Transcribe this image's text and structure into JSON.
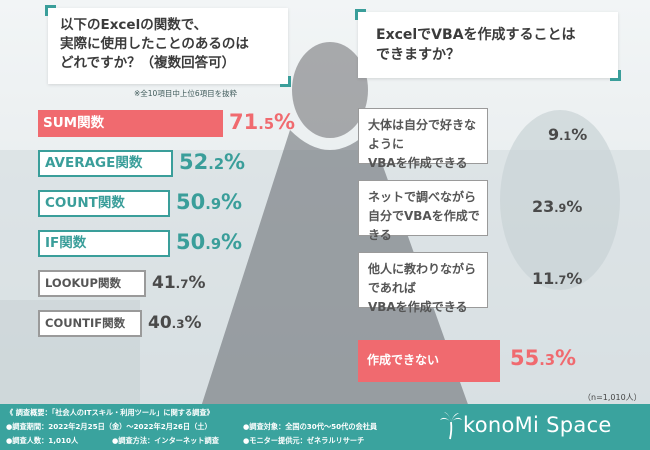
{
  "left_question": "以下のExcelの関数で、\n実際に使用したことのあるのは\nどれですか？（複数回答可）",
  "left_note": "※全10項目中上位6項目を抜粋",
  "right_question": "ExcelでVBAを作成することは\nできますか？",
  "n_note": "（n=1,010人）",
  "colors": {
    "highlight": "#f06a6f",
    "teal": "#3a9e9a",
    "gray": "#9a9a9a",
    "footer": "#3aa39e"
  },
  "chart_data": [
    {
      "type": "bar",
      "title": "以下のExcelの関数で、実際に使用したことのあるのはどれですか？（複数回答可）",
      "categories": [
        "SUM関数",
        "AVERAGE関数",
        "COUNT関数",
        "IF関数",
        "LOOKUP関数",
        "COUNTIF関数"
      ],
      "values": [
        71.5,
        52.2,
        50.9,
        50.9,
        41.7,
        40.3
      ],
      "labels": [
        "71.5%",
        "52.2%",
        "50.9%",
        "50.9%",
        "41.7%",
        "40.3%"
      ],
      "styles": [
        "highlight",
        "teal",
        "teal",
        "teal",
        "gray",
        "gray"
      ],
      "unit": "%"
    },
    {
      "type": "bar",
      "title": "ExcelでVBAを作成することはできますか？",
      "categories": [
        "大体は自分で好きなように\nVBAを作成できる",
        "ネットで調べながら\n自分でVBAを作成できる",
        "他人に教わりながらであれば\nVBAを作成できる",
        "作成できない"
      ],
      "values": [
        9.1,
        23.9,
        11.7,
        55.3
      ],
      "labels": [
        "9.1%",
        "23.9%",
        "11.7%",
        "55.3%"
      ],
      "styles": [
        "gray",
        "gray",
        "gray",
        "highlight"
      ],
      "unit": "%"
    }
  ],
  "footer": {
    "overview": "《 調査概要：「社会人のITスキル・利用ツール」に関する調査》",
    "period": "●調査期間：2022年2月25日（金）～2022年2月26日（土）",
    "people": "●調査人数：1,010人",
    "method": "●調査方法：インターネット調査",
    "target": "●調査対象：全国の30代～50代の会社員",
    "provider": "●モニター提供元：ゼネラルリサーチ",
    "brand": "konoMi Space"
  }
}
